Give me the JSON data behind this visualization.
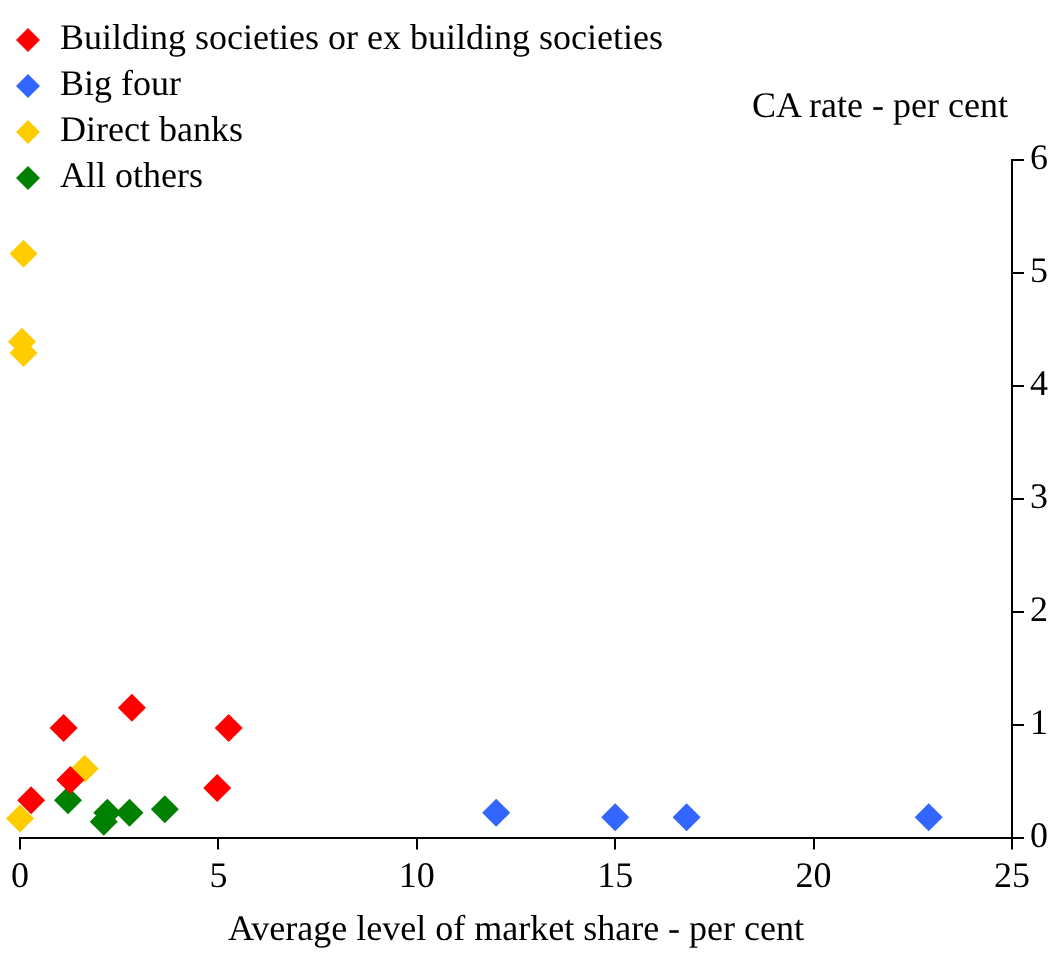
{
  "chart_data": {
    "type": "scatter",
    "xlabel": "Average level of market share - per cent",
    "ylabel": "CA rate - per cent",
    "xlim": [
      0,
      25
    ],
    "xticks": [
      0,
      5,
      10,
      15,
      20,
      25
    ],
    "ylim": [
      0,
      6
    ],
    "yticks": [
      0,
      1,
      2,
      3,
      4,
      5,
      6
    ],
    "grid": false,
    "legend": "top left",
    "marker": "diamond",
    "series": [
      {
        "name": "Building societies or ex building societies",
        "color": "#ff0000",
        "x": [
          0.28,
          1.1,
          2.82,
          1.27,
          5.26,
          4.97
        ],
        "values": [
          0.33,
          0.97,
          1.15,
          0.51,
          0.97,
          0.44
        ]
      },
      {
        "name": "Big four",
        "color": "#3366ff",
        "x": [
          12.0,
          15.0,
          16.8,
          22.9
        ],
        "values": [
          0.22,
          0.18,
          0.18,
          0.18
        ]
      },
      {
        "name": "Direct banks",
        "color": "#ffcc00",
        "x": [
          0.09,
          0.05,
          0.09,
          1.63,
          0.0
        ],
        "values": [
          5.17,
          4.39,
          4.29,
          0.61,
          0.17
        ]
      },
      {
        "name": "All others",
        "color": "#008000",
        "x": [
          1.21,
          2.2,
          2.11,
          2.76,
          3.65
        ],
        "values": [
          0.33,
          0.22,
          0.14,
          0.22,
          0.25
        ]
      }
    ]
  }
}
